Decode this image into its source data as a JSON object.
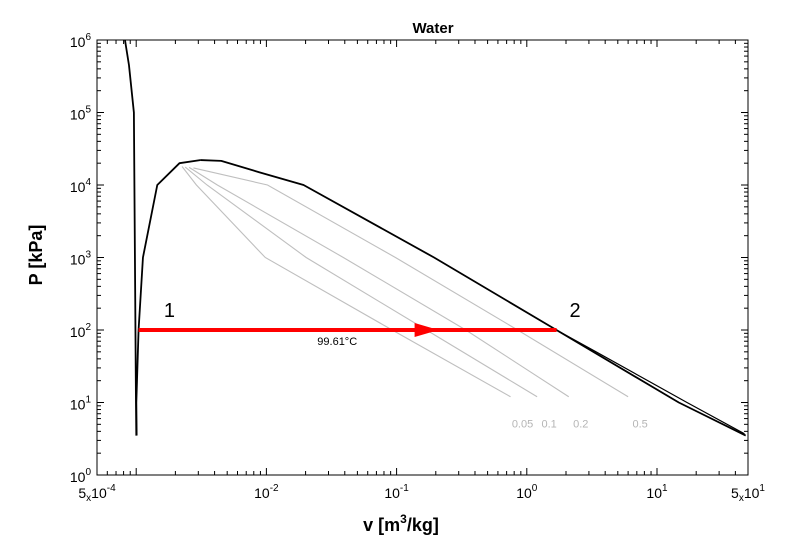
{
  "chart_data": {
    "type": "line",
    "title": "Water",
    "x_scale": "log",
    "y_scale": "log",
    "xlim": [
      0.0005,
      50
    ],
    "ylim": [
      1,
      1000000
    ],
    "xlabel": {
      "main": "v [m",
      "sup": "3",
      "tail": "/kg]"
    },
    "ylabel": "P [kPa]",
    "x_ticks": [
      {
        "value": 0.0005,
        "mant": "5",
        "times": "x",
        "base": "10",
        "exp": "-4"
      },
      {
        "value": 0.01,
        "mant": "",
        "times": "",
        "base": "10",
        "exp": "-2"
      },
      {
        "value": 0.1,
        "mant": "",
        "times": "",
        "base": "10",
        "exp": "-1"
      },
      {
        "value": 1,
        "mant": "",
        "times": "",
        "base": "10",
        "exp": "0"
      },
      {
        "value": 10,
        "mant": "",
        "times": "",
        "base": "10",
        "exp": "1"
      },
      {
        "value": 50,
        "mant": "5",
        "times": "x",
        "base": "10",
        "exp": "1"
      }
    ],
    "y_ticks": [
      {
        "value": 1,
        "base": "10",
        "exp": "0"
      },
      {
        "value": 10,
        "base": "10",
        "exp": "1"
      },
      {
        "value": 100,
        "base": "10",
        "exp": "2"
      },
      {
        "value": 1000,
        "base": "10",
        "exp": "3"
      },
      {
        "value": 10000,
        "base": "10",
        "exp": "4"
      },
      {
        "value": 100000,
        "base": "10",
        "exp": "5"
      },
      {
        "value": 1000000,
        "base": "10",
        "exp": "6"
      }
    ],
    "series": [
      {
        "name": "saturated liquid line",
        "color": "#000000",
        "points": [
          [
            0.001008,
            3.5
          ],
          [
            0.001002,
            10
          ],
          [
            0.001043,
            100
          ],
          [
            0.001127,
            1000
          ],
          [
            0.001452,
            10000
          ],
          [
            0.00215,
            20000
          ],
          [
            0.0031,
            22064
          ]
        ]
      },
      {
        "name": "compressed liquid line",
        "color": "#000000",
        "points": [
          [
            0.001002,
            3.5
          ],
          [
            0.000996,
            10
          ],
          [
            0.00096,
            100000
          ],
          [
            0.00088,
            450000
          ],
          [
            0.00082,
            1000000
          ]
        ]
      },
      {
        "name": "saturated vapor line",
        "color": "#000000",
        "points": [
          [
            0.0031,
            22064
          ],
          [
            0.0045,
            21500
          ],
          [
            0.0088,
            15000
          ],
          [
            0.0193,
            10000
          ],
          [
            0.194,
            1000
          ],
          [
            1.69,
            100
          ],
          [
            14.7,
            10
          ],
          [
            48,
            3.5
          ]
        ]
      },
      {
        "name": "superheated isotherm 99.61°C",
        "color": "#000000",
        "points": [
          [
            1.69,
            100
          ],
          [
            3.4,
            50
          ],
          [
            17,
            10
          ],
          [
            47,
            3.7
          ]
        ]
      },
      {
        "name": "process 1-2",
        "color": "#ff0000",
        "points": [
          [
            0.001043,
            100
          ],
          [
            1.694,
            100
          ]
        ]
      }
    ],
    "quality_lines": [
      {
        "label": "0.05",
        "color": "#bfbfbf",
        "points": [
          [
            0.00225,
            18000
          ],
          [
            0.0029,
            10000
          ],
          [
            0.0098,
            1000
          ],
          [
            0.0925,
            100
          ],
          [
            0.75,
            12
          ]
        ]
      },
      {
        "label": "0.1",
        "color": "#bfbfbf",
        "points": [
          [
            0.00238,
            17700
          ],
          [
            0.0035,
            10000
          ],
          [
            0.0202,
            1000
          ],
          [
            0.1695,
            100
          ],
          [
            1.2,
            12
          ]
        ]
      },
      {
        "label": "0.2",
        "color": "#bfbfbf",
        "points": [
          [
            0.00255,
            17500
          ],
          [
            0.0042,
            10000
          ],
          [
            0.039,
            1000
          ],
          [
            0.34,
            100
          ],
          [
            2.1,
            12
          ]
        ]
      },
      {
        "label": "0.5",
        "color": "#bfbfbf",
        "points": [
          [
            0.00275,
            17200
          ],
          [
            0.0102,
            10000
          ],
          [
            0.098,
            1000
          ],
          [
            0.85,
            100
          ],
          [
            6.0,
            12
          ]
        ]
      }
    ],
    "annotations": [
      {
        "text": "1",
        "x": 0.0018,
        "y": 150,
        "kind": "state-point"
      },
      {
        "text": "2",
        "x": 2.35,
        "y": 150,
        "kind": "state-point"
      },
      {
        "text": "99.61°C",
        "x": 0.035,
        "y": 62,
        "kind": "isotherm-label"
      }
    ],
    "arrow": {
      "x": 0.17,
      "y": 100,
      "color": "#ff0000"
    }
  }
}
